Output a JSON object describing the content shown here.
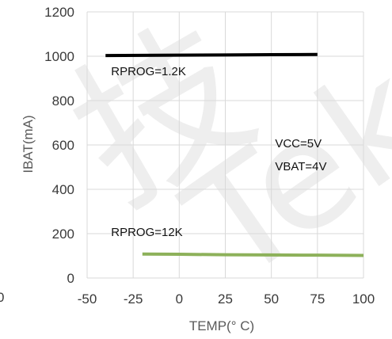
{
  "chart_data": {
    "type": "line",
    "xlabel": "TEMP(° C)",
    "ylabel": "IBAT(mA)",
    "xlim": [
      -50,
      100
    ],
    "ylim": [
      0,
      1200
    ],
    "x_ticks": [
      "-50",
      "-25",
      "0",
      "25",
      "50",
      "75",
      "100"
    ],
    "y_ticks": [
      "0",
      "200",
      "400",
      "600",
      "800",
      "1000",
      "1200"
    ],
    "clipped_left_tick": "0",
    "grid": true,
    "series": [
      {
        "name": "RPROG=1.2K",
        "color": "#000000",
        "x": [
          -40,
          0,
          25,
          50,
          75
        ],
        "y": [
          1003,
          1005,
          1006,
          1007,
          1008
        ]
      },
      {
        "name": "RPROG=12K",
        "color": "#8db15a",
        "x": [
          -20,
          0,
          25,
          50,
          75,
          100
        ],
        "y": [
          108,
          107,
          105,
          104,
          103,
          102
        ]
      }
    ],
    "annotations": [
      {
        "text": "RPROG=1.2K",
        "x": -37,
        "y": 915
      },
      {
        "text": "RPROG=12K",
        "x": -37,
        "y": 190
      },
      {
        "text": "VCC=5V",
        "x": 52,
        "y": 590
      },
      {
        "text": "VBAT=4V",
        "x": 52,
        "y": 485
      }
    ]
  }
}
